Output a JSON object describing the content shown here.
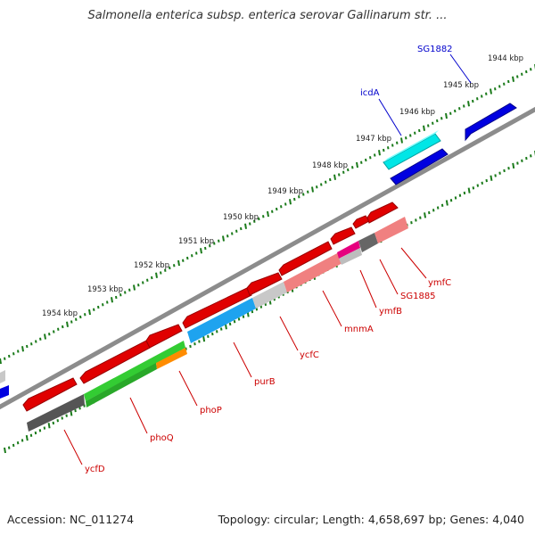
{
  "title": "Salmonella enterica subsp. enterica serovar Gallinarum str. ...",
  "accession_text": "Accession: NC_011274",
  "summary_text": "Topology: circular; Length: 4,658,697 bp; Genes: 4,040",
  "colors": {
    "backbone": "#8c8c8c",
    "tick": "#1a7a1a",
    "label_forward": "#0000cc",
    "label_reverse": "#cc0000"
  },
  "ticks": [
    {
      "label": "1944 kbp"
    },
    {
      "label": "1945 kbp"
    },
    {
      "label": "1946 kbp"
    },
    {
      "label": "1947 kbp"
    },
    {
      "label": "1948 kbp"
    },
    {
      "label": "1949 kbp"
    },
    {
      "label": "1950 kbp"
    },
    {
      "label": "1951 kbp"
    },
    {
      "label": "1952 kbp"
    },
    {
      "label": "1953 kbp"
    },
    {
      "label": "1954 kbp"
    }
  ],
  "gene_labels": [
    {
      "name": "SG1882",
      "strand": "forward"
    },
    {
      "name": "icdA",
      "strand": "forward"
    },
    {
      "name": "ymfC",
      "strand": "reverse"
    },
    {
      "name": "SG1885",
      "strand": "reverse"
    },
    {
      "name": "ymfB",
      "strand": "reverse"
    },
    {
      "name": "mnmA",
      "strand": "reverse"
    },
    {
      "name": "ycfC",
      "strand": "reverse"
    },
    {
      "name": "purB",
      "strand": "reverse"
    },
    {
      "name": "phoP",
      "strand": "reverse"
    },
    {
      "name": "phoQ",
      "strand": "reverse"
    },
    {
      "name": "ycfD",
      "strand": "reverse"
    }
  ]
}
